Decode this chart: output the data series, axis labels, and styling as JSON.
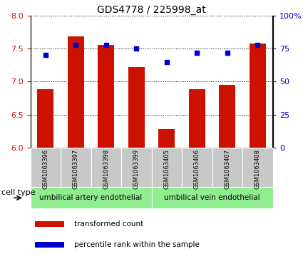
{
  "title": "GDS4778 / 225998_at",
  "samples": [
    "GSM1063396",
    "GSM1063397",
    "GSM1063398",
    "GSM1063399",
    "GSM1063405",
    "GSM1063406",
    "GSM1063407",
    "GSM1063408"
  ],
  "transformed_count": [
    6.88,
    7.68,
    7.55,
    7.22,
    6.28,
    6.88,
    6.95,
    7.58
  ],
  "percentile_rank": [
    70,
    78,
    78,
    75,
    65,
    72,
    72,
    78
  ],
  "ylim_left": [
    6.0,
    8.0
  ],
  "ylim_right": [
    0,
    100
  ],
  "yticks_left": [
    6.0,
    6.5,
    7.0,
    7.5,
    8.0
  ],
  "yticks_right": [
    0,
    25,
    50,
    75,
    100
  ],
  "bar_color": "#cc1100",
  "dot_color": "#0000cc",
  "grid_color": "#000000",
  "cell_type_groups": [
    {
      "label": "umbilical artery endothelial",
      "start": 0,
      "end": 4,
      "color": "#90ee90"
    },
    {
      "label": "umbilical vein endothelial",
      "start": 4,
      "end": 8,
      "color": "#90ee90"
    }
  ],
  "cell_type_label": "cell type",
  "legend_items": [
    {
      "label": "transformed count",
      "color": "#cc1100"
    },
    {
      "label": "percentile rank within the sample",
      "color": "#0000cc"
    }
  ],
  "bar_width": 0.55,
  "bg_color": "#ffffff",
  "tick_label_color_left": "#cc1100",
  "tick_label_color_right": "#0000cc",
  "title_fontsize": 10,
  "legend_fontsize": 7.5,
  "sample_label_fontsize": 6,
  "group_label_fontsize": 7.5
}
